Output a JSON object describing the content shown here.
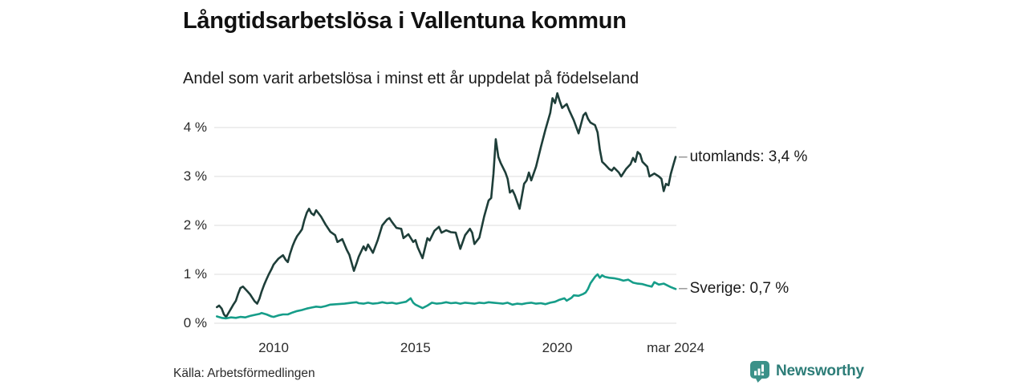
{
  "header": {
    "title": "Långtidsarbetslösa i Vallentuna kommun",
    "subtitle": "Andel som varit arbetslösa i minst ett år uppdelat på födelseland"
  },
  "footer": {
    "source": "Källa: Arbetsförmedlingen",
    "brand": "Newsworthy"
  },
  "colors": {
    "series_utomlands": "#1e3e39",
    "series_sverige": "#169d89",
    "gridline": "#e3e3e3",
    "annotation_dash": "#8a8a8a",
    "brand_teal": "#2d7d78",
    "brand_icon_teal": "#3b9189",
    "text_dark": "#111111"
  },
  "chart_data": {
    "type": "line",
    "title": "Långtidsarbetslösa i Vallentuna kommun",
    "subtitle": "Andel som varit arbetslösa i minst ett år uppdelat på födelseland",
    "xlabel": "",
    "ylabel": "",
    "x_range": [
      2007.9,
      2024.3
    ],
    "ylim": [
      0,
      4.8
    ],
    "grid": true,
    "legend_position": "right-annotations",
    "unit": "%",
    "y_axis": {
      "ticks": [
        {
          "v": 0,
          "label": "0 %"
        },
        {
          "v": 1,
          "label": "1 %"
        },
        {
          "v": 2,
          "label": "2 %"
        },
        {
          "v": 3,
          "label": "3 %"
        },
        {
          "v": 4,
          "label": "4 %"
        }
      ]
    },
    "x_axis": {
      "ticks": [
        {
          "t": 2010,
          "label": "2010"
        },
        {
          "t": 2015,
          "label": "2015"
        },
        {
          "t": 2020,
          "label": "2020"
        },
        {
          "t": 2024.17,
          "label": "mar 2024"
        }
      ]
    },
    "series": [
      {
        "name": "utomlands",
        "annotation": "utomlands: 3,4 %",
        "last_value": 3.4,
        "color": "#1e3e39",
        "points": [
          [
            2008.0,
            0.33
          ],
          [
            2008.08,
            0.36
          ],
          [
            2008.17,
            0.3
          ],
          [
            2008.25,
            0.18
          ],
          [
            2008.33,
            0.13
          ],
          [
            2008.42,
            0.22
          ],
          [
            2008.5,
            0.3
          ],
          [
            2008.58,
            0.38
          ],
          [
            2008.67,
            0.46
          ],
          [
            2008.75,
            0.6
          ],
          [
            2008.83,
            0.72
          ],
          [
            2008.92,
            0.75
          ],
          [
            2009.0,
            0.7
          ],
          [
            2009.08,
            0.65
          ],
          [
            2009.17,
            0.59
          ],
          [
            2009.25,
            0.52
          ],
          [
            2009.33,
            0.45
          ],
          [
            2009.42,
            0.4
          ],
          [
            2009.5,
            0.5
          ],
          [
            2009.58,
            0.65
          ],
          [
            2009.67,
            0.79
          ],
          [
            2009.75,
            0.9
          ],
          [
            2009.83,
            1.0
          ],
          [
            2009.92,
            1.1
          ],
          [
            2010.0,
            1.2
          ],
          [
            2010.17,
            1.32
          ],
          [
            2010.33,
            1.39
          ],
          [
            2010.42,
            1.3
          ],
          [
            2010.5,
            1.25
          ],
          [
            2010.58,
            1.42
          ],
          [
            2010.67,
            1.58
          ],
          [
            2010.75,
            1.69
          ],
          [
            2010.83,
            1.78
          ],
          [
            2010.92,
            1.85
          ],
          [
            2011.0,
            1.92
          ],
          [
            2011.08,
            2.1
          ],
          [
            2011.17,
            2.26
          ],
          [
            2011.25,
            2.34
          ],
          [
            2011.33,
            2.25
          ],
          [
            2011.42,
            2.21
          ],
          [
            2011.5,
            2.31
          ],
          [
            2011.58,
            2.25
          ],
          [
            2011.67,
            2.18
          ],
          [
            2011.83,
            2.02
          ],
          [
            2012.0,
            1.87
          ],
          [
            2012.17,
            1.8
          ],
          [
            2012.25,
            1.66
          ],
          [
            2012.42,
            1.72
          ],
          [
            2012.58,
            1.5
          ],
          [
            2012.67,
            1.4
          ],
          [
            2012.83,
            1.07
          ],
          [
            2012.92,
            1.22
          ],
          [
            2013.0,
            1.36
          ],
          [
            2013.17,
            1.57
          ],
          [
            2013.25,
            1.49
          ],
          [
            2013.33,
            1.61
          ],
          [
            2013.5,
            1.44
          ],
          [
            2013.67,
            1.7
          ],
          [
            2013.83,
            2.0
          ],
          [
            2014.0,
            2.12
          ],
          [
            2014.08,
            2.15
          ],
          [
            2014.17,
            2.07
          ],
          [
            2014.33,
            1.95
          ],
          [
            2014.5,
            1.93
          ],
          [
            2014.58,
            1.74
          ],
          [
            2014.75,
            1.82
          ],
          [
            2014.92,
            1.66
          ],
          [
            2015.0,
            1.7
          ],
          [
            2015.08,
            1.55
          ],
          [
            2015.25,
            1.33
          ],
          [
            2015.42,
            1.74
          ],
          [
            2015.5,
            1.69
          ],
          [
            2015.67,
            1.89
          ],
          [
            2015.83,
            1.97
          ],
          [
            2015.92,
            1.85
          ],
          [
            2016.08,
            1.9
          ],
          [
            2016.25,
            1.86
          ],
          [
            2016.42,
            1.85
          ],
          [
            2016.58,
            1.52
          ],
          [
            2016.75,
            1.8
          ],
          [
            2016.92,
            1.93
          ],
          [
            2017.0,
            1.85
          ],
          [
            2017.08,
            1.62
          ],
          [
            2017.25,
            1.75
          ],
          [
            2017.42,
            2.18
          ],
          [
            2017.58,
            2.51
          ],
          [
            2017.67,
            2.56
          ],
          [
            2017.75,
            3.05
          ],
          [
            2017.83,
            3.76
          ],
          [
            2017.92,
            3.4
          ],
          [
            2018.0,
            3.28
          ],
          [
            2018.17,
            3.08
          ],
          [
            2018.25,
            2.95
          ],
          [
            2018.33,
            2.67
          ],
          [
            2018.42,
            2.72
          ],
          [
            2018.5,
            2.62
          ],
          [
            2018.67,
            2.34
          ],
          [
            2018.83,
            2.85
          ],
          [
            2018.92,
            2.92
          ],
          [
            2019.0,
            3.08
          ],
          [
            2019.08,
            2.92
          ],
          [
            2019.25,
            3.2
          ],
          [
            2019.42,
            3.6
          ],
          [
            2019.58,
            3.95
          ],
          [
            2019.75,
            4.3
          ],
          [
            2019.83,
            4.6
          ],
          [
            2019.92,
            4.5
          ],
          [
            2020.0,
            4.7
          ],
          [
            2020.08,
            4.55
          ],
          [
            2020.17,
            4.4
          ],
          [
            2020.33,
            4.48
          ],
          [
            2020.42,
            4.35
          ],
          [
            2020.58,
            4.15
          ],
          [
            2020.75,
            3.88
          ],
          [
            2020.92,
            4.25
          ],
          [
            2021.0,
            4.3
          ],
          [
            2021.08,
            4.18
          ],
          [
            2021.17,
            4.1
          ],
          [
            2021.33,
            4.05
          ],
          [
            2021.42,
            3.9
          ],
          [
            2021.5,
            3.55
          ],
          [
            2021.58,
            3.3
          ],
          [
            2021.67,
            3.25
          ],
          [
            2021.83,
            3.15
          ],
          [
            2021.92,
            3.12
          ],
          [
            2022.0,
            3.18
          ],
          [
            2022.17,
            3.08
          ],
          [
            2022.25,
            3.0
          ],
          [
            2022.42,
            3.15
          ],
          [
            2022.58,
            3.25
          ],
          [
            2022.67,
            3.38
          ],
          [
            2022.75,
            3.3
          ],
          [
            2022.83,
            3.5
          ],
          [
            2022.92,
            3.45
          ],
          [
            2023.0,
            3.3
          ],
          [
            2023.17,
            3.2
          ],
          [
            2023.25,
            3.0
          ],
          [
            2023.42,
            3.06
          ],
          [
            2023.58,
            3.0
          ],
          [
            2023.67,
            2.95
          ],
          [
            2023.75,
            2.7
          ],
          [
            2023.83,
            2.85
          ],
          [
            2023.92,
            2.82
          ],
          [
            2024.0,
            3.05
          ],
          [
            2024.08,
            3.22
          ],
          [
            2024.17,
            3.4
          ]
        ]
      },
      {
        "name": "Sverige",
        "annotation": "Sverige: 0,7 %",
        "last_value": 0.7,
        "color": "#169d89",
        "points": [
          [
            2008.0,
            0.14
          ],
          [
            2008.17,
            0.11
          ],
          [
            2008.33,
            0.1
          ],
          [
            2008.5,
            0.12
          ],
          [
            2008.67,
            0.11
          ],
          [
            2008.83,
            0.13
          ],
          [
            2009.0,
            0.12
          ],
          [
            2009.17,
            0.15
          ],
          [
            2009.33,
            0.17
          ],
          [
            2009.5,
            0.19
          ],
          [
            2009.58,
            0.21
          ],
          [
            2009.75,
            0.18
          ],
          [
            2009.92,
            0.14
          ],
          [
            2010.0,
            0.13
          ],
          [
            2010.17,
            0.16
          ],
          [
            2010.33,
            0.18
          ],
          [
            2010.5,
            0.18
          ],
          [
            2010.67,
            0.22
          ],
          [
            2010.83,
            0.25
          ],
          [
            2011.0,
            0.27
          ],
          [
            2011.17,
            0.3
          ],
          [
            2011.33,
            0.32
          ],
          [
            2011.5,
            0.34
          ],
          [
            2011.67,
            0.33
          ],
          [
            2011.83,
            0.35
          ],
          [
            2012.0,
            0.38
          ],
          [
            2012.25,
            0.39
          ],
          [
            2012.5,
            0.4
          ],
          [
            2012.75,
            0.42
          ],
          [
            2012.92,
            0.43
          ],
          [
            2013.0,
            0.41
          ],
          [
            2013.17,
            0.4
          ],
          [
            2013.33,
            0.42
          ],
          [
            2013.5,
            0.4
          ],
          [
            2013.67,
            0.41
          ],
          [
            2013.83,
            0.43
          ],
          [
            2014.0,
            0.41
          ],
          [
            2014.17,
            0.42
          ],
          [
            2014.33,
            0.4
          ],
          [
            2014.5,
            0.42
          ],
          [
            2014.67,
            0.44
          ],
          [
            2014.83,
            0.51
          ],
          [
            2014.92,
            0.42
          ],
          [
            2015.0,
            0.38
          ],
          [
            2015.25,
            0.31
          ],
          [
            2015.42,
            0.36
          ],
          [
            2015.58,
            0.42
          ],
          [
            2015.75,
            0.4
          ],
          [
            2015.92,
            0.41
          ],
          [
            2016.08,
            0.43
          ],
          [
            2016.25,
            0.41
          ],
          [
            2016.42,
            0.42
          ],
          [
            2016.58,
            0.4
          ],
          [
            2016.75,
            0.42
          ],
          [
            2016.92,
            0.41
          ],
          [
            2017.08,
            0.4
          ],
          [
            2017.25,
            0.42
          ],
          [
            2017.42,
            0.41
          ],
          [
            2017.58,
            0.43
          ],
          [
            2017.75,
            0.42
          ],
          [
            2017.92,
            0.41
          ],
          [
            2018.08,
            0.4
          ],
          [
            2018.25,
            0.42
          ],
          [
            2018.42,
            0.38
          ],
          [
            2018.58,
            0.4
          ],
          [
            2018.75,
            0.39
          ],
          [
            2018.92,
            0.41
          ],
          [
            2019.08,
            0.42
          ],
          [
            2019.25,
            0.4
          ],
          [
            2019.42,
            0.41
          ],
          [
            2019.58,
            0.39
          ],
          [
            2019.75,
            0.42
          ],
          [
            2019.92,
            0.44
          ],
          [
            2020.08,
            0.48
          ],
          [
            2020.25,
            0.51
          ],
          [
            2020.33,
            0.46
          ],
          [
            2020.5,
            0.52
          ],
          [
            2020.58,
            0.57
          ],
          [
            2020.75,
            0.56
          ],
          [
            2020.92,
            0.6
          ],
          [
            2021.0,
            0.63
          ],
          [
            2021.08,
            0.7
          ],
          [
            2021.17,
            0.82
          ],
          [
            2021.33,
            0.95
          ],
          [
            2021.42,
            1.0
          ],
          [
            2021.5,
            0.93
          ],
          [
            2021.58,
            0.98
          ],
          [
            2021.67,
            0.95
          ],
          [
            2021.83,
            0.93
          ],
          [
            2022.0,
            0.92
          ],
          [
            2022.17,
            0.9
          ],
          [
            2022.33,
            0.87
          ],
          [
            2022.5,
            0.89
          ],
          [
            2022.67,
            0.83
          ],
          [
            2022.83,
            0.81
          ],
          [
            2023.0,
            0.8
          ],
          [
            2023.17,
            0.77
          ],
          [
            2023.33,
            0.75
          ],
          [
            2023.42,
            0.84
          ],
          [
            2023.58,
            0.79
          ],
          [
            2023.75,
            0.81
          ],
          [
            2023.92,
            0.76
          ],
          [
            2024.0,
            0.74
          ],
          [
            2024.08,
            0.72
          ],
          [
            2024.17,
            0.7
          ]
        ]
      }
    ]
  }
}
